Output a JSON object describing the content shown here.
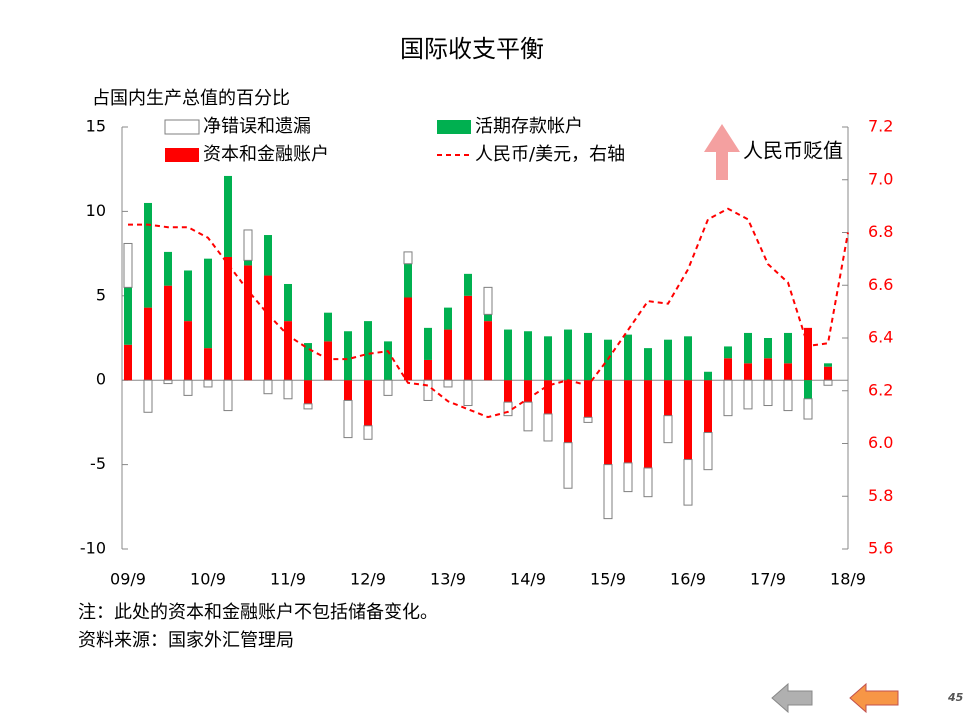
{
  "chart_data": {
    "type": "bar",
    "title": "国际收支平衡",
    "y_label": "占国内生产总值的百分比",
    "annotation": "人民币贬值",
    "categories": [
      "09/9",
      null,
      null,
      null,
      "10/9",
      null,
      null,
      null,
      "11/9",
      null,
      null,
      null,
      "12/9",
      null,
      null,
      null,
      "13/9",
      null,
      null,
      null,
      "14/9",
      null,
      null,
      null,
      "15/9",
      null,
      null,
      null,
      "16/9",
      null,
      null,
      null,
      "17/9",
      null,
      null,
      null,
      "18/9"
    ],
    "series": [
      {
        "name": "净错误和遗漏",
        "color": "#ffffff",
        "stroke": "#7f7f7f",
        "values": [
          2.6,
          -1.9,
          -0.2,
          -0.9,
          -0.4,
          -1.8,
          1.8,
          -0.8,
          -1.1,
          -0.3,
          0.0,
          -2.2,
          -0.8,
          -0.9,
          0.7,
          -1.2,
          -0.4,
          -1.5,
          1.6,
          -0.8,
          -1.7,
          -1.6,
          -2.7,
          -0.3,
          -3.2,
          -1.7,
          -1.7,
          -1.6,
          -2.7,
          -2.2,
          -2.1,
          -1.7,
          -1.5,
          -1.8,
          -1.2,
          -0.3,
          null
        ]
      },
      {
        "name": "活期存款帐户",
        "color": "#00b050",
        "values": [
          3.4,
          6.2,
          2.0,
          3.0,
          5.3,
          4.8,
          0.3,
          2.4,
          2.2,
          2.2,
          1.7,
          2.9,
          3.5,
          2.3,
          2.0,
          1.9,
          1.3,
          1.3,
          0.4,
          3.0,
          2.9,
          2.6,
          3.0,
          2.8,
          2.4,
          2.7,
          1.9,
          2.4,
          2.6,
          0.5,
          0.7,
          1.8,
          1.2,
          1.8,
          -1.1,
          0.2,
          null
        ]
      },
      {
        "name": "资本和金融账户",
        "color": "#ff0000",
        "values": [
          2.1,
          4.3,
          5.6,
          3.5,
          1.9,
          7.3,
          6.8,
          6.2,
          3.5,
          -1.4,
          2.3,
          -1.2,
          -2.7,
          0.0,
          4.9,
          1.2,
          3.0,
          5.0,
          3.5,
          -1.3,
          -1.3,
          -2.0,
          -3.7,
          -2.2,
          -5.0,
          -4.9,
          -5.2,
          -2.1,
          -4.7,
          -3.1,
          1.3,
          1.0,
          1.3,
          1.0,
          3.1,
          0.8,
          null
        ]
      },
      {
        "name": "人民币/美元，右轴",
        "color": "#ff0000",
        "type": "line",
        "axis": "y2",
        "values": [
          6.83,
          6.83,
          6.82,
          6.82,
          6.78,
          6.68,
          6.58,
          6.49,
          6.41,
          6.36,
          6.32,
          6.32,
          6.34,
          6.35,
          6.23,
          6.22,
          6.16,
          6.13,
          6.1,
          6.12,
          6.17,
          6.22,
          6.24,
          6.22,
          6.32,
          6.43,
          6.54,
          6.53,
          6.66,
          6.85,
          6.89,
          6.85,
          6.68,
          6.61,
          6.37,
          6.38,
          6.8
        ]
      }
    ],
    "ylim": [
      -10,
      15
    ],
    "yticks": [
      -10,
      -5,
      0,
      5,
      10,
      15
    ],
    "y2lim": [
      5.6,
      7.2
    ],
    "y2ticks": [
      5.6,
      5.8,
      {
        "value": 6,
        "label": "6.0"
      },
      6.2,
      6.4,
      6.6,
      6.8,
      {
        "value": 7,
        "label": "7.0"
      },
      7.2
    ],
    "notes": [
      "注：此处的资本和金融账户不包括储备变化。",
      "资料来源：国家外汇管理局"
    ],
    "page_number": "45"
  }
}
